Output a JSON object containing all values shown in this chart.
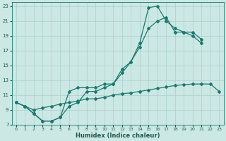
{
  "xlabel": "Humidex (Indice chaleur)",
  "bg_color": "#cce8e4",
  "grid_color": "#aacfcb",
  "line_color": "#1a7a6e",
  "xlim": [
    -0.5,
    23.5
  ],
  "ylim": [
    7,
    23.5
  ],
  "xticks": [
    0,
    1,
    2,
    3,
    4,
    5,
    6,
    7,
    8,
    9,
    10,
    11,
    12,
    13,
    14,
    15,
    16,
    17,
    18,
    19,
    20,
    21,
    22,
    23
  ],
  "yticks": [
    7,
    9,
    11,
    13,
    15,
    17,
    19,
    21,
    23
  ],
  "line1_x": [
    0,
    1,
    2,
    3,
    4,
    5,
    6,
    7,
    8,
    9,
    10,
    11,
    12,
    13,
    14,
    15,
    16,
    17,
    18,
    19,
    20,
    21
  ],
  "line1_y": [
    10,
    9.5,
    8.5,
    7.5,
    7.5,
    8.0,
    11.5,
    12.0,
    12.0,
    12.0,
    12.5,
    12.5,
    14.5,
    15.5,
    18.0,
    22.8,
    23.0,
    21.0,
    20.0,
    19.5,
    19.0,
    18.0
  ],
  "line2_x": [
    0,
    1,
    2,
    3,
    4,
    5,
    6,
    7,
    8,
    9,
    10,
    11,
    12,
    13,
    14,
    15,
    16,
    17,
    18,
    19,
    20,
    21,
    22,
    23
  ],
  "line2_y": [
    10,
    9.5,
    8.5,
    7.5,
    7.5,
    8.0,
    9.5,
    10.0,
    11.5,
    11.5,
    12.0,
    12.5,
    14.0,
    15.5,
    17.5,
    20.0,
    21.0,
    21.5,
    19.5,
    19.5,
    19.5,
    18.5,
    null,
    null
  ],
  "line3_x": [
    0,
    1,
    2,
    3,
    4,
    5,
    6,
    7,
    8,
    9,
    10,
    11,
    12,
    13,
    14,
    15,
    16,
    17,
    18,
    19,
    20,
    21,
    22,
    23
  ],
  "line3_y": [
    10.0,
    9.5,
    9.0,
    9.3,
    9.5,
    9.8,
    10.0,
    10.2,
    10.5,
    10.5,
    10.7,
    11.0,
    11.2,
    11.3,
    11.5,
    11.7,
    11.9,
    12.1,
    12.3,
    12.4,
    12.5,
    12.5,
    12.5,
    11.5
  ]
}
